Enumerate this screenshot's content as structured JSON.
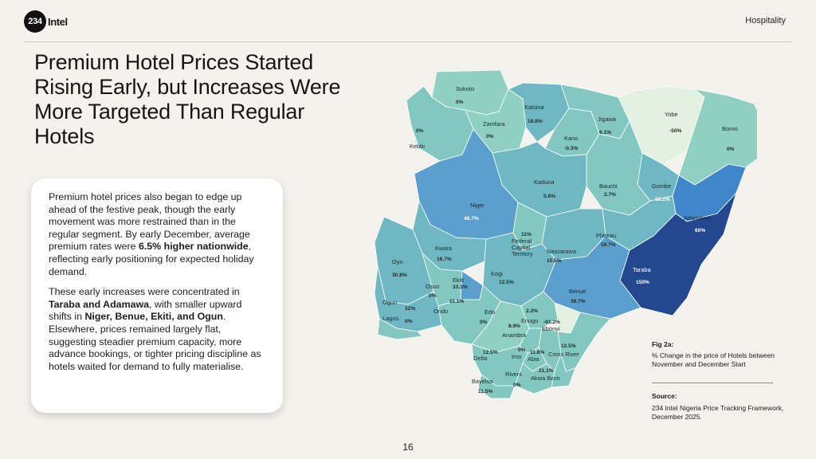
{
  "brand": {
    "badge": "234",
    "name": "Intel"
  },
  "section": "Hospitality",
  "title": "Premium Hotel Prices Started Rising Early, but Increases Were More Targeted Than Regular Hotels",
  "card": {
    "p1_a": "Premium hotel prices also began to edge up ahead of the festive peak, though the early movement was more restrained than in the regular segment. By early December, average premium rates were ",
    "p1_b": "6.5% higher nationwide",
    "p1_c": ", reflecting early positioning for expected holiday demand.",
    "p2_a": "These early increases were concentrated in ",
    "p2_b": "Taraba and Adamawa",
    "p2_c": ", with smaller upward shifts in ",
    "p2_d": "Niger, Benue, Ekiti, and Ogun",
    "p2_e": ". Elsewhere, prices remained largely flat, suggesting steadier premium capacity, more advance bookings, or tighter pricing discipline as hotels waited for demand to fully materialise."
  },
  "map": {
    "colors": {
      "c_pale": "#e3f1e1",
      "c_0": "#8fd0c3",
      "c_low": "#82c8c1",
      "c_mid": "#6fb8c3",
      "c_high": "#5a9fcd",
      "c_higher": "#3f86cb",
      "c_max": "#23488f"
    },
    "states": {
      "sokoto": {
        "name": "Sokoto",
        "value": "0%"
      },
      "kebbi": {
        "name": "Kebbi",
        "value": "0%"
      },
      "zamfara": {
        "name": "Zamfara",
        "value": "0%"
      },
      "katsina": {
        "name": "Katsina",
        "value": "18.8%"
      },
      "kano": {
        "name": "Kano",
        "value": "-0.3%"
      },
      "jigawa": {
        "name": "Jigawa",
        "value": "6.1%"
      },
      "yobe": {
        "name": "Yobe",
        "value": "-50%"
      },
      "borno": {
        "name": "Borno",
        "value": "0%"
      },
      "kaduna": {
        "name": "Kaduna",
        "value": "5.6%"
      },
      "bauchi": {
        "name": "Bauchi",
        "value": "2.7%"
      },
      "gombe": {
        "name": "Gombe",
        "value": "18.1%"
      },
      "adamawa": {
        "name": "Adamawa",
        "value": "60%"
      },
      "niger": {
        "name": "Niger",
        "value": "46.7%"
      },
      "fct": {
        "name1": "Federal",
        "name2": "Capital",
        "name3": "Territory",
        "value": "11%"
      },
      "nassarawa": {
        "name": "Nassarawa",
        "value": "15.5%"
      },
      "plateau": {
        "name": "Plateau",
        "value": "16.7%"
      },
      "taraba": {
        "name": "Taraba",
        "value": "150%"
      },
      "kwara": {
        "name": "Kwara",
        "value": "16.7%"
      },
      "oyo": {
        "name": "Oyo",
        "value": "30.8%"
      },
      "osun": {
        "name": "Osun",
        "value": "0%"
      },
      "ekiti": {
        "name": "Ekiti",
        "value": "33.3%"
      },
      "ondo": {
        "name": "Ondo",
        "value": "11.1%"
      },
      "kogi": {
        "name": "Kogi",
        "value": "12.5%"
      },
      "benue": {
        "name": "Benue",
        "value": "39.7%"
      },
      "ogun": {
        "name": "Ogun",
        "value": "32%"
      },
      "lagos": {
        "name": "Lagos",
        "value": "0%"
      },
      "edo": {
        "name": "Edo",
        "value": "0%"
      },
      "enugu": {
        "name": "Enugu",
        "value": "2.2%"
      },
      "ebonyi": {
        "name": "Ebonyi",
        "value": "-61.2%"
      },
      "anambra": {
        "name": "Anambra",
        "value": "8.9%"
      },
      "delta": {
        "name": "Delta",
        "value": "12.5%"
      },
      "imo": {
        "name": "Imo",
        "value": "0%"
      },
      "abia": {
        "name": "Abia",
        "value": "11.8%"
      },
      "crossriver": {
        "name": "Cross River",
        "value": "12.5%"
      },
      "rivers": {
        "name": "Rivers",
        "value": "0%"
      },
      "akwaibom": {
        "name": "Akwa Ibom",
        "value": "21.1%"
      },
      "bayelsa": {
        "name": "Bayelsa",
        "value": "11.5%"
      }
    }
  },
  "figure": {
    "label": "Fig 2a:",
    "caption": "% Change in the price of Hotels between November and December Start"
  },
  "source": {
    "label": "Source:",
    "text": "234 Intel Nigeria Price Tracking Framework, December 2025."
  },
  "page_number": "16"
}
